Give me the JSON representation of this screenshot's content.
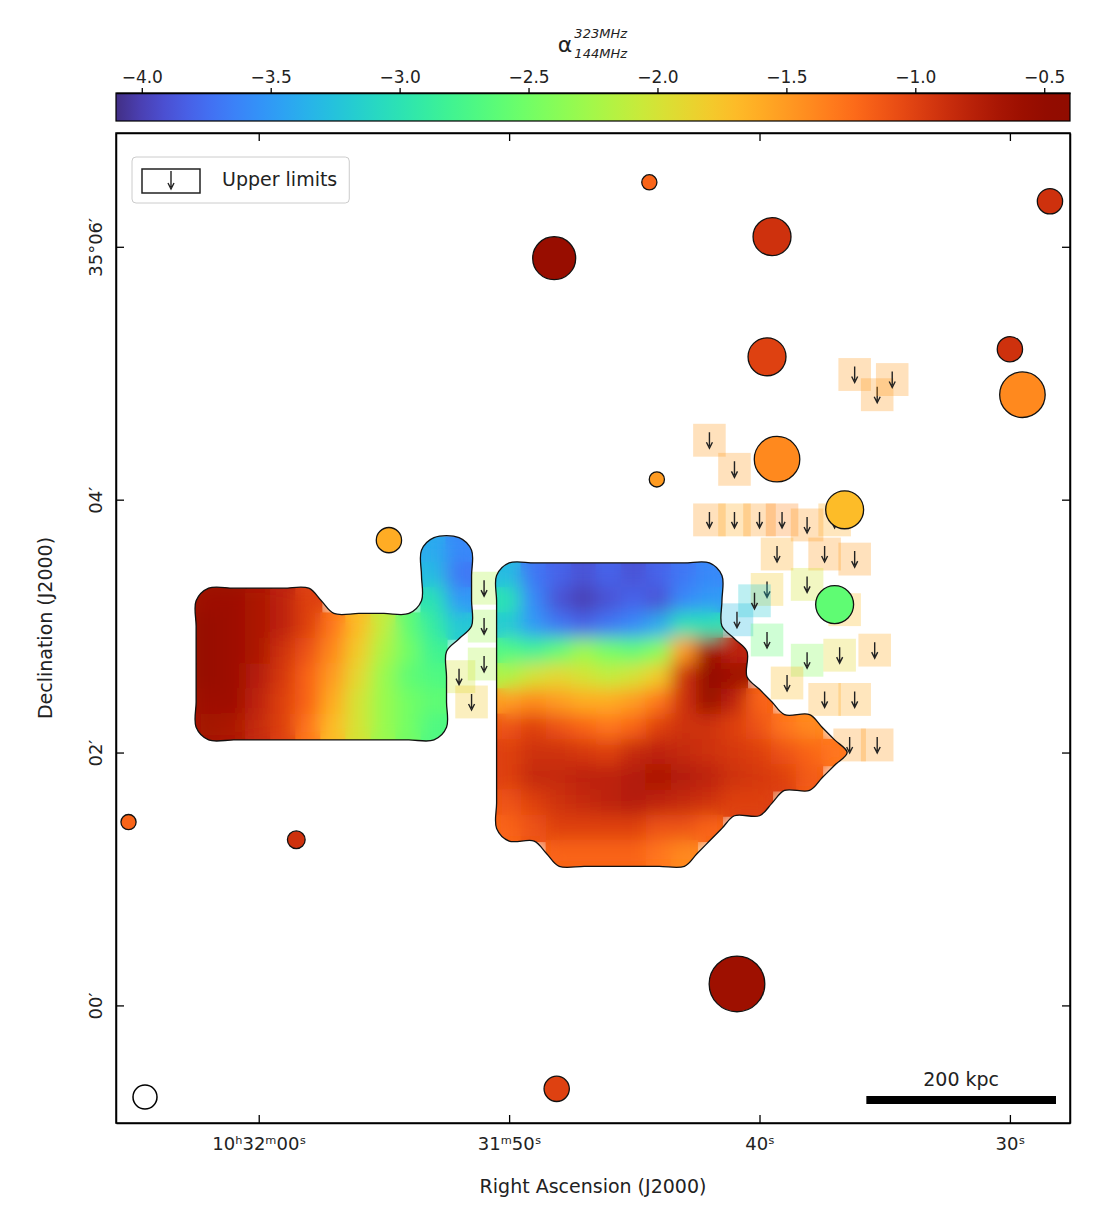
{
  "chart_data": {
    "type": "heatmap",
    "x_label": "Right Ascension (J2000)",
    "y_label": "Declination (J2000)",
    "xlim": [
      65.7,
      27.6
    ],
    "xticks": [
      {
        "value": 60,
        "label": "10ʰ32ᵐ00ˢ"
      },
      {
        "value": 50,
        "label": "31ᵐ50ˢ"
      },
      {
        "value": 40,
        "label": "40ˢ"
      },
      {
        "value": 30,
        "label": "30ˢ"
      }
    ],
    "ylim": [
      -0.93,
      6.9
    ],
    "yticks": [
      {
        "value": 0,
        "label": "00′"
      },
      {
        "value": 2,
        "label": "02′"
      },
      {
        "value": 4,
        "label": "04′"
      },
      {
        "value": 6,
        "label": "35°06′"
      }
    ],
    "colorbar_title": "α",
    "colorbar_title_sup": "323MHz",
    "colorbar_title_sub": "144MHz",
    "colorbar_range": [
      -4.1,
      -0.4
    ],
    "colorbar_ticks": [
      {
        "value": -4.0,
        "label": "−4.0"
      },
      {
        "value": -3.5,
        "label": "−3.5"
      },
      {
        "value": -3.0,
        "label": "−3.0"
      },
      {
        "value": -2.5,
        "label": "−2.5"
      },
      {
        "value": -2.0,
        "label": "−2.0"
      },
      {
        "value": -1.5,
        "label": "−1.5"
      },
      {
        "value": -1.0,
        "label": "−1.0"
      },
      {
        "value": -0.5,
        "label": "−0.5"
      }
    ],
    "cells": {
      "ra": [
        62,
        61,
        60,
        59,
        58,
        57,
        56,
        55,
        54,
        53,
        52,
        51,
        50,
        49,
        48,
        47,
        46,
        45,
        44,
        43,
        42,
        41,
        40,
        39,
        38,
        37
      ],
      "dec": [
        3.6,
        3.4,
        3.2,
        3.0,
        2.8,
        2.6,
        2.4,
        2.2,
        2.0,
        1.8,
        1.6,
        1.4,
        1.2
      ],
      "values": [
        [
          null,
          null,
          null,
          null,
          null,
          null,
          null,
          null,
          null,
          -3.4,
          -3.6,
          null,
          null,
          null,
          null,
          null,
          null,
          null,
          null,
          null,
          null,
          null,
          null,
          null,
          null,
          null
        ],
        [
          null,
          null,
          null,
          null,
          null,
          null,
          null,
          null,
          null,
          -3.3,
          -3.7,
          null,
          -3.3,
          -3.7,
          -3.8,
          -3.9,
          -3.8,
          -3.9,
          -3.8,
          -3.7,
          -3.6,
          null,
          null,
          null,
          null,
          null
        ],
        [
          -0.6,
          -0.6,
          -0.7,
          -0.8,
          -1.0,
          null,
          null,
          null,
          null,
          -3.0,
          -3.5,
          null,
          -3.0,
          -3.6,
          -3.9,
          -4.0,
          -3.9,
          -3.8,
          -3.9,
          -3.6,
          -3.5,
          null,
          null,
          null,
          null,
          null
        ],
        [
          -0.55,
          -0.6,
          -0.7,
          -0.8,
          -1.0,
          -1.3,
          -1.7,
          -2.1,
          -2.6,
          -2.9,
          -3.2,
          null,
          -3.2,
          -3.5,
          -3.7,
          -3.8,
          -3.7,
          -3.6,
          -3.4,
          -3.0,
          -3.0,
          null,
          null,
          null,
          null,
          null
        ],
        [
          -0.55,
          -0.6,
          -0.7,
          -0.9,
          -1.1,
          -1.4,
          -1.8,
          -2.2,
          -2.5,
          -2.8,
          null,
          null,
          -2.7,
          -2.8,
          -2.6,
          -2.3,
          -2.5,
          -2.6,
          -2.4,
          -1.5,
          -0.6,
          -0.8,
          null,
          null,
          null,
          null
        ],
        [
          -0.55,
          -0.6,
          -0.75,
          -0.95,
          -1.2,
          -1.5,
          -1.9,
          -2.3,
          -2.6,
          -2.7,
          null,
          null,
          -2.2,
          -2.0,
          -1.9,
          -2.0,
          -2.1,
          -2.0,
          -1.8,
          -0.9,
          -0.5,
          -0.6,
          null,
          null,
          null,
          null
        ],
        [
          -0.6,
          -0.6,
          -0.8,
          -1.0,
          -1.2,
          -1.6,
          -2.0,
          -2.3,
          -2.5,
          -2.6,
          null,
          null,
          -1.5,
          -1.4,
          -1.5,
          -1.6,
          -1.6,
          -1.5,
          -1.3,
          -0.9,
          -0.55,
          -0.8,
          -1.2,
          null,
          null,
          null
        ],
        [
          -0.65,
          -0.7,
          -0.85,
          -1.0,
          -1.3,
          -1.7,
          -2.0,
          -2.3,
          -2.5,
          -2.7,
          null,
          null,
          -1.1,
          -1.0,
          -1.1,
          -1.2,
          -1.3,
          -1.2,
          -1.0,
          -0.9,
          -0.9,
          -1.0,
          -1.1,
          -1.3,
          -1.4,
          null
        ],
        [
          null,
          null,
          null,
          null,
          null,
          null,
          null,
          null,
          null,
          null,
          null,
          null,
          -1.0,
          -0.9,
          -0.9,
          -0.95,
          -1.0,
          -0.85,
          -0.8,
          -0.85,
          -0.9,
          -0.95,
          -1.0,
          -1.1,
          -1.2,
          -1.3
        ],
        [
          null,
          null,
          null,
          null,
          null,
          null,
          null,
          null,
          null,
          null,
          null,
          null,
          -1.0,
          -0.85,
          -0.85,
          -0.8,
          -0.8,
          -0.75,
          -0.7,
          -0.75,
          -0.8,
          -0.9,
          -0.95,
          -1.0,
          -1.15,
          null
        ],
        [
          null,
          null,
          null,
          null,
          null,
          null,
          null,
          null,
          null,
          null,
          null,
          null,
          -1.1,
          -1.0,
          -0.9,
          -0.85,
          -0.8,
          -0.75,
          -0.8,
          -0.85,
          -0.9,
          -1.0,
          -1.0,
          null,
          null,
          null
        ],
        [
          null,
          null,
          null,
          null,
          null,
          null,
          null,
          null,
          null,
          null,
          null,
          null,
          -1.2,
          -1.1,
          -1.0,
          -1.0,
          -1.0,
          -1.0,
          -1.1,
          -1.1,
          -1.2,
          null,
          null,
          null,
          null,
          null
        ],
        [
          null,
          null,
          null,
          null,
          null,
          null,
          null,
          null,
          null,
          null,
          null,
          null,
          null,
          null,
          -1.2,
          -1.2,
          -1.2,
          -1.2,
          -1.3,
          -1.4,
          null,
          null,
          null,
          null,
          null,
          null
        ]
      ]
    },
    "sources": [
      {
        "ra": 48.2,
        "dec": 5.91,
        "size": 0.17,
        "value": -0.55
      },
      {
        "ra": 39.5,
        "dec": 6.08,
        "size": 0.15,
        "value": -0.9
      },
      {
        "ra": 44.4,
        "dec": 6.51,
        "size": 0.06,
        "value": -1.2
      },
      {
        "ra": 28.4,
        "dec": 6.36,
        "size": 0.1,
        "value": -0.9
      },
      {
        "ra": 39.7,
        "dec": 5.13,
        "size": 0.15,
        "value": -1.0
      },
      {
        "ra": 30.0,
        "dec": 5.19,
        "size": 0.1,
        "value": -0.9
      },
      {
        "ra": 29.5,
        "dec": 4.83,
        "size": 0.18,
        "value": -1.4
      },
      {
        "ra": 39.3,
        "dec": 4.32,
        "size": 0.18,
        "value": -1.4
      },
      {
        "ra": 44.1,
        "dec": 4.16,
        "size": 0.06,
        "value": -1.5
      },
      {
        "ra": 54.8,
        "dec": 3.68,
        "size": 0.1,
        "value": -1.6
      },
      {
        "ra": 36.6,
        "dec": 3.92,
        "size": 0.15,
        "value": -1.7
      },
      {
        "ra": 37.0,
        "dec": 3.17,
        "size": 0.15,
        "value": -2.6
      },
      {
        "ra": 40.9,
        "dec": 0.17,
        "size": 0.22,
        "value": -0.6
      },
      {
        "ra": 48.1,
        "dec": -0.66,
        "size": 0.1,
        "value": -1.0
      },
      {
        "ra": 58.5,
        "dec": 1.31,
        "size": 0.07,
        "value": -0.9
      },
      {
        "ra": 65.2,
        "dec": 1.45,
        "size": 0.06,
        "value": -1.2
      }
    ],
    "upper_limits": [
      {
        "ra": 51,
        "dec": 3.3,
        "value": -2.2
      },
      {
        "ra": 51,
        "dec": 3.0,
        "value": -2.3
      },
      {
        "ra": 51,
        "dec": 2.7,
        "value": -2.2
      },
      {
        "ra": 52,
        "dec": 2.6,
        "value": -2.0
      },
      {
        "ra": 51.5,
        "dec": 2.4,
        "value": -1.8
      },
      {
        "ra": 42,
        "dec": 4.47,
        "value": -1.5
      },
      {
        "ra": 41,
        "dec": 4.24,
        "value": -1.5
      },
      {
        "ra": 42,
        "dec": 3.84,
        "value": -1.5
      },
      {
        "ra": 41,
        "dec": 3.84,
        "value": -1.6
      },
      {
        "ra": 40,
        "dec": 3.84,
        "value": -1.5
      },
      {
        "ra": 39.1,
        "dec": 3.84,
        "value": -1.4
      },
      {
        "ra": 38.1,
        "dec": 3.8,
        "value": -1.5
      },
      {
        "ra": 37,
        "dec": 3.84,
        "value": -1.6
      },
      {
        "ra": 39.3,
        "dec": 3.57,
        "value": -1.6
      },
      {
        "ra": 37.4,
        "dec": 3.57,
        "value": -1.5
      },
      {
        "ra": 36.2,
        "dec": 3.53,
        "value": -1.5
      },
      {
        "ra": 39.7,
        "dec": 3.29,
        "value": -1.8
      },
      {
        "ra": 38.1,
        "dec": 3.33,
        "value": -2.0
      },
      {
        "ra": 36.6,
        "dec": 3.13,
        "value": -1.7
      },
      {
        "ra": 40.9,
        "dec": 3.05,
        "value": -3.3
      },
      {
        "ra": 40.2,
        "dec": 3.2,
        "value": -3.2
      },
      {
        "ra": 39.7,
        "dec": 2.89,
        "value": -2.6
      },
      {
        "ra": 38.1,
        "dec": 2.73,
        "value": -2.4
      },
      {
        "ra": 36.8,
        "dec": 2.77,
        "value": -1.9
      },
      {
        "ra": 35.4,
        "dec": 2.81,
        "value": -1.6
      },
      {
        "ra": 38.9,
        "dec": 2.55,
        "value": -1.7
      },
      {
        "ra": 37.4,
        "dec": 2.42,
        "value": -1.6
      },
      {
        "ra": 36.2,
        "dec": 2.42,
        "value": -1.6
      },
      {
        "ra": 36.4,
        "dec": 2.06,
        "value": -1.5
      },
      {
        "ra": 35.3,
        "dec": 2.06,
        "value": -1.5
      },
      {
        "ra": 36.2,
        "dec": 4.99,
        "value": -1.5
      },
      {
        "ra": 35.3,
        "dec": 4.83,
        "value": -1.5
      },
      {
        "ra": 34.7,
        "dec": 4.95,
        "value": -1.5
      }
    ],
    "legend": "upper left",
    "legend_label": "Upper limits",
    "scale_bar": {
      "label": "200 kpc",
      "length": 1.5
    }
  }
}
